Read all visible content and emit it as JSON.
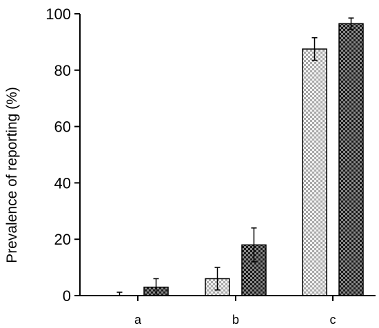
{
  "chart_data": {
    "type": "bar",
    "categories": [
      "a",
      "b",
      "c"
    ],
    "series": [
      {
        "pattern": "light-checker",
        "values": [
          0,
          6,
          87.5
        ],
        "errors": [
          1.2,
          4,
          4
        ]
      },
      {
        "pattern": "dark-checker",
        "values": [
          3,
          18,
          96.5
        ],
        "errors": [
          3,
          6,
          2
        ]
      }
    ],
    "title": "",
    "xlabel": "",
    "ylabel": "Prevalence of reporting (%)",
    "ylim": [
      0,
      100
    ],
    "yticks": [
      0,
      20,
      40,
      60,
      80,
      100
    ],
    "grid": false,
    "legend": "none"
  }
}
